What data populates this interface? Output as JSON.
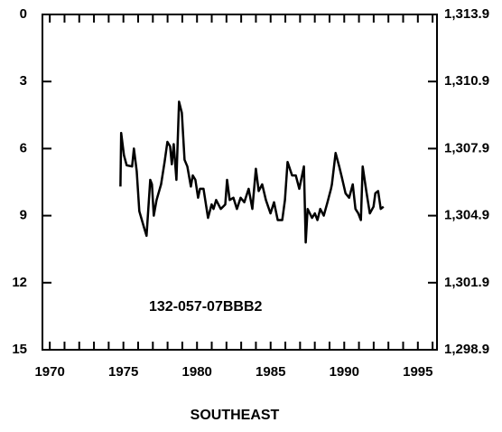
{
  "chart_data": {
    "type": "line",
    "annotation": "132-057-07BBB2",
    "xlabel": "SOUTHEAST",
    "xlim": [
      1969.5,
      1996.3
    ],
    "xticks": [
      1970,
      1975,
      1980,
      1985,
      1990,
      1995
    ],
    "x_minor_ticks": [
      1970,
      1971,
      1972,
      1973,
      1974,
      1975,
      1976,
      1977,
      1978,
      1979,
      1980,
      1981,
      1982,
      1983,
      1984,
      1985,
      1986,
      1987,
      1988,
      1989,
      1990,
      1991,
      1992,
      1993,
      1994,
      1995,
      1996
    ],
    "ylim": [
      15,
      0
    ],
    "yticks": [
      0,
      3,
      6,
      9,
      12,
      15
    ],
    "y2lim": [
      1298.9,
      1313.9
    ],
    "y2ticks": [
      {
        "value": 1313.9,
        "label": "1,313.9"
      },
      {
        "value": 1310.9,
        "label": "1,310.9"
      },
      {
        "value": 1307.9,
        "label": "1,307.9"
      },
      {
        "value": 1304.9,
        "label": "1,304.9"
      },
      {
        "value": 1301.9,
        "label": "1,301.9"
      },
      {
        "value": 1298.9,
        "label": "1,298.9"
      }
    ],
    "series": [
      {
        "color": "#000000",
        "x": [
          1974.8,
          1974.85,
          1975.04,
          1975.22,
          1975.59,
          1975.71,
          1975.9,
          1976.08,
          1976.39,
          1976.57,
          1976.82,
          1976.94,
          1977.06,
          1977.25,
          1977.56,
          1977.8,
          1977.99,
          1978.17,
          1978.29,
          1978.42,
          1978.6,
          1978.78,
          1978.97,
          1979.15,
          1979.34,
          1979.58,
          1979.71,
          1979.89,
          1980.07,
          1980.2,
          1980.44,
          1980.75,
          1980.99,
          1981.12,
          1981.3,
          1981.61,
          1981.92,
          1982.04,
          1982.22,
          1982.47,
          1982.71,
          1982.96,
          1983.21,
          1983.51,
          1983.76,
          1984.0,
          1984.19,
          1984.43,
          1984.68,
          1984.99,
          1985.23,
          1985.48,
          1985.79,
          1985.97,
          1986.15,
          1986.46,
          1986.71,
          1986.95,
          1987.26,
          1987.38,
          1987.51,
          1987.81,
          1988.0,
          1988.18,
          1988.37,
          1988.61,
          1988.86,
          1989.1,
          1989.16,
          1989.41,
          1989.66,
          1989.84,
          1990.09,
          1990.33,
          1990.58,
          1990.76,
          1990.95,
          1991.13,
          1991.25,
          1991.5,
          1991.74,
          1991.99,
          1992.11,
          1992.3,
          1992.48,
          1992.67
        ],
        "values": [
          7.7,
          5.3,
          6.3,
          6.75,
          6.8,
          6.0,
          7.0,
          8.8,
          9.5,
          9.9,
          7.4,
          7.6,
          9.0,
          8.3,
          7.6,
          6.6,
          5.7,
          5.9,
          6.7,
          5.8,
          7.4,
          3.9,
          4.4,
          6.5,
          6.8,
          7.7,
          7.2,
          7.4,
          8.2,
          7.8,
          7.8,
          9.1,
          8.5,
          8.7,
          8.3,
          8.7,
          8.5,
          7.4,
          8.3,
          8.2,
          8.7,
          8.2,
          8.4,
          7.8,
          8.7,
          6.9,
          7.9,
          7.6,
          8.3,
          8.9,
          8.4,
          9.2,
          9.2,
          8.3,
          6.6,
          7.2,
          7.2,
          7.8,
          6.8,
          10.2,
          8.7,
          9.1,
          8.9,
          9.2,
          8.7,
          9.0,
          8.4,
          7.8,
          7.6,
          6.2,
          6.8,
          7.3,
          8.0,
          8.2,
          7.6,
          8.7,
          8.9,
          9.2,
          6.8,
          7.9,
          8.9,
          8.6,
          8.0,
          7.9,
          8.7,
          8.6
        ]
      }
    ]
  }
}
